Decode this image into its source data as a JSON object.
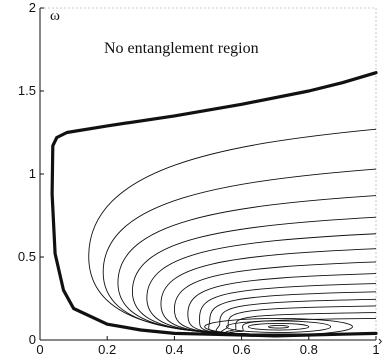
{
  "chart_data": {
    "type": "line",
    "title": "",
    "xlabel": "",
    "ylabel": "ω",
    "xlim": [
      0,
      1
    ],
    "ylim": [
      0,
      2
    ],
    "grid": false,
    "x_ticks": [
      {
        "value": 0,
        "label": "0"
      },
      {
        "value": 0.2,
        "label": "0.2"
      },
      {
        "value": 0.4,
        "label": "0.4"
      },
      {
        "value": 0.6,
        "label": "0.6"
      },
      {
        "value": 0.8,
        "label": "0.8"
      },
      {
        "value": 1,
        "label": "1"
      }
    ],
    "y_ticks": [
      {
        "value": 0,
        "label": "0"
      },
      {
        "value": 0.5,
        "label": "0.5"
      },
      {
        "value": 1,
        "label": "1"
      },
      {
        "value": 1.5,
        "label": "1.5"
      },
      {
        "value": 2,
        "label": "2"
      }
    ],
    "annotation": "No entanglement region",
    "boundary": [
      [
        1.0,
        1.61
      ],
      [
        0.9,
        1.55
      ],
      [
        0.8,
        1.5
      ],
      [
        0.6,
        1.42
      ],
      [
        0.4,
        1.35
      ],
      [
        0.2,
        1.29
      ],
      [
        0.08,
        1.25
      ],
      [
        0.05,
        1.22
      ],
      [
        0.038,
        1.17
      ],
      [
        0.036,
        0.88
      ],
      [
        0.045,
        0.52
      ],
      [
        0.07,
        0.3
      ],
      [
        0.1,
        0.19
      ],
      [
        0.2,
        0.095
      ],
      [
        0.3,
        0.06
      ],
      [
        0.4,
        0.04
      ],
      [
        0.5,
        0.035
      ],
      [
        0.6,
        0.03
      ],
      [
        0.7,
        0.025
      ],
      [
        0.8,
        0.03
      ],
      [
        0.9,
        0.035
      ],
      [
        1.0,
        0.04
      ]
    ],
    "contours": [
      {
        "right_y": 1.27,
        "left_x": 0.145
      },
      {
        "right_y": 1.03,
        "left_x": 0.188
      },
      {
        "right_y": 0.87,
        "left_x": 0.232
      },
      {
        "right_y": 0.74,
        "left_x": 0.275
      },
      {
        "right_y": 0.64,
        "left_x": 0.318
      },
      {
        "right_y": 0.55,
        "left_x": 0.36
      },
      {
        "right_y": 0.47,
        "left_x": 0.4
      },
      {
        "right_y": 0.4,
        "left_x": 0.44
      },
      {
        "right_y": 0.34,
        "left_x": 0.475
      },
      {
        "right_y": 0.29,
        "left_x": 0.505
      },
      {
        "right_y": 0.245,
        "left_x": 0.535
      },
      {
        "right_y": 0.205,
        "left_x": 0.56
      },
      {
        "right_y": 0.165,
        "left_x": 0.583
      },
      {
        "right_y": 0.13,
        "left_x": 0.605
      }
    ],
    "closed_contours": [
      {
        "cx": 0.71,
        "cy": 0.08,
        "rx": 0.22,
        "ry": 0.05
      },
      {
        "cx": 0.71,
        "cy": 0.08,
        "rx": 0.155,
        "ry": 0.035
      },
      {
        "cx": 0.71,
        "cy": 0.08,
        "rx": 0.09,
        "ry": 0.02
      },
      {
        "cx": 0.71,
        "cy": 0.08,
        "rx": 0.03,
        "ry": 0.008
      }
    ]
  }
}
